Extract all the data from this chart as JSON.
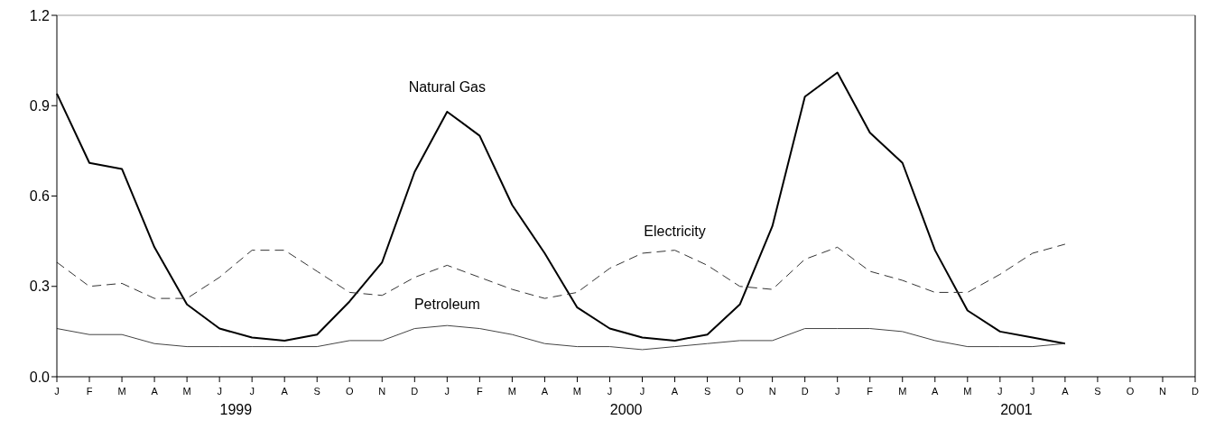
{
  "chart_data": {
    "type": "line",
    "categories": [
      "J",
      "F",
      "M",
      "A",
      "M",
      "J",
      "J",
      "A",
      "S",
      "O",
      "N",
      "D",
      "J",
      "F",
      "M",
      "A",
      "M",
      "J",
      "J",
      "A",
      "S",
      "O",
      "N",
      "D",
      "J",
      "F",
      "M",
      "A",
      "M",
      "J",
      "J",
      "A",
      "S",
      "O",
      "N",
      "D"
    ],
    "series": [
      {
        "name": "Natural Gas",
        "color": "#000000",
        "line_style": "solid",
        "values": [
          0.94,
          0.71,
          0.69,
          0.43,
          0.24,
          0.16,
          0.13,
          0.12,
          0.14,
          0.25,
          0.38,
          0.68,
          0.88,
          0.8,
          0.57,
          0.41,
          0.23,
          0.16,
          0.13,
          0.12,
          0.14,
          0.24,
          0.5,
          0.93,
          1.01,
          0.81,
          0.71,
          0.42,
          0.22,
          0.15,
          0.13,
          0.11,
          null,
          null,
          null,
          null
        ]
      },
      {
        "name": "Electricity",
        "color": "#333333",
        "line_style": "dashed",
        "values": [
          0.38,
          0.3,
          0.31,
          0.26,
          0.26,
          0.33,
          0.42,
          0.42,
          0.35,
          0.28,
          0.27,
          0.33,
          0.37,
          0.33,
          0.29,
          0.26,
          0.28,
          0.36,
          0.41,
          0.42,
          0.37,
          0.3,
          0.29,
          0.39,
          0.43,
          0.35,
          0.32,
          0.28,
          0.28,
          0.34,
          0.41,
          0.44,
          null,
          null,
          null,
          null
        ]
      },
      {
        "name": "Petroleum",
        "color": "#444444",
        "line_style": "solid",
        "values": [
          0.16,
          0.14,
          0.14,
          0.11,
          0.1,
          0.1,
          0.1,
          0.1,
          0.1,
          0.12,
          0.12,
          0.16,
          0.17,
          0.16,
          0.14,
          0.11,
          0.1,
          0.1,
          0.09,
          0.1,
          0.11,
          0.12,
          0.12,
          0.16,
          0.16,
          0.16,
          0.15,
          0.12,
          0.1,
          0.1,
          0.1,
          0.11,
          null,
          null,
          null,
          null
        ]
      }
    ],
    "annotations": [
      "1999",
      "2000",
      "2001"
    ],
    "ylim": [
      0,
      1.2
    ],
    "yticks": [
      {
        "value": 0,
        "label": "0.0"
      },
      0.3,
      0.6,
      0.9,
      1.2
    ],
    "marker": "none"
  }
}
